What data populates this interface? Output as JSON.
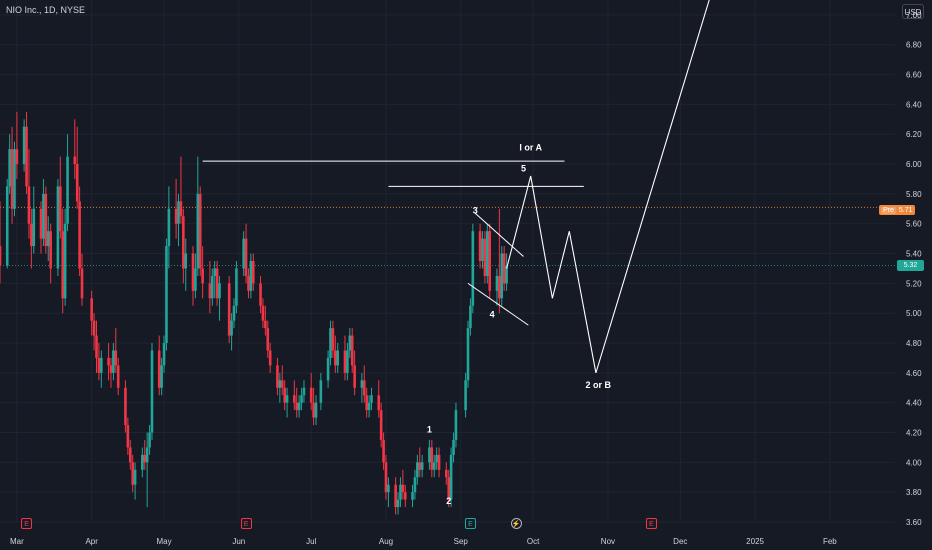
{
  "header": {
    "symbol_title": "NIO Inc., 1D, NYSE"
  },
  "price_scale": {
    "currency_button": "USD",
    "ticks": [
      "7.00",
      "6.80",
      "6.60",
      "6.40",
      "6.20",
      "6.00",
      "5.80",
      "5.60",
      "5.40",
      "5.20",
      "5.00",
      "4.80",
      "4.60",
      "4.40",
      "4.20",
      "4.00",
      "3.80",
      "3.60"
    ],
    "premarket_label": "Pre",
    "premarket_price": "5.71",
    "last_price": "5.32"
  },
  "time_axis": {
    "ticks": [
      "Mar",
      "Apr",
      "May",
      "Jun",
      "Jul",
      "Aug",
      "Sep",
      "Oct",
      "Nov",
      "Dec",
      "2025",
      "Feb"
    ]
  },
  "annotations": {
    "wave_1": "1",
    "wave_2": "2",
    "wave_3": "3",
    "wave_4": "4",
    "wave_5": "5",
    "target_top": "I or A",
    "target_bottom": "2 or B"
  },
  "events": {
    "earnings_glyph": "E",
    "split_glyph": "⚡"
  },
  "colors": {
    "background": "#161a25",
    "up": "#21a69a",
    "down": "#f23645",
    "grid": "#1f2430",
    "text": "#d1d4dc",
    "premarket": "#f0883e",
    "drawing": "#ffffff"
  },
  "chart_data": {
    "type": "candlestick",
    "title": "NIO Inc., 1D, NYSE",
    "currency": "USD",
    "ylim": [
      3.6,
      7.1
    ],
    "x_range": [
      "2024-02-23",
      "2025-02-28"
    ],
    "grid": true,
    "last_price": 5.32,
    "premarket_price": 5.71,
    "candles": [
      [
        "2024-02-23",
        5.45,
        5.75,
        5.2,
        5.32
      ],
      [
        "2024-02-26",
        5.32,
        5.9,
        5.3,
        5.85
      ],
      [
        "2024-02-27",
        5.85,
        6.2,
        5.8,
        6.1
      ],
      [
        "2024-02-28",
        6.1,
        6.25,
        5.6,
        5.7
      ],
      [
        "2024-02-29",
        5.7,
        6.15,
        5.65,
        6.1
      ],
      [
        "2024-03-01",
        6.1,
        6.35,
        5.9,
        6.0
      ],
      [
        "2024-03-04",
        6.0,
        6.3,
        5.95,
        6.25
      ],
      [
        "2024-03-05",
        6.25,
        6.35,
        5.8,
        5.85
      ],
      [
        "2024-03-06",
        5.85,
        6.1,
        5.5,
        5.6
      ],
      [
        "2024-03-07",
        5.6,
        5.7,
        5.3,
        5.45
      ],
      [
        "2024-03-08",
        5.45,
        5.85,
        5.4,
        5.7
      ],
      [
        "2024-03-11",
        5.7,
        5.75,
        5.4,
        5.5
      ],
      [
        "2024-03-12",
        5.5,
        5.9,
        5.45,
        5.8
      ],
      [
        "2024-03-13",
        5.8,
        5.85,
        5.4,
        5.45
      ],
      [
        "2024-03-14",
        5.45,
        5.65,
        5.35,
        5.55
      ],
      [
        "2024-03-15",
        5.55,
        5.6,
        5.2,
        5.3
      ],
      [
        "2024-03-18",
        5.3,
        5.9,
        5.25,
        5.85
      ],
      [
        "2024-03-19",
        5.85,
        6.05,
        5.5,
        5.55
      ],
      [
        "2024-03-20",
        5.55,
        5.7,
        5.0,
        5.1
      ],
      [
        "2024-03-21",
        5.1,
        5.7,
        5.05,
        5.6
      ],
      [
        "2024-03-22",
        5.6,
        6.2,
        5.55,
        6.05
      ],
      [
        "2024-03-25",
        6.05,
        6.3,
        5.9,
        6.0
      ],
      [
        "2024-03-26",
        6.0,
        6.25,
        5.7,
        5.75
      ],
      [
        "2024-03-27",
        5.75,
        5.85,
        5.25,
        5.3
      ],
      [
        "2024-03-28",
        5.3,
        5.4,
        5.05,
        5.1
      ],
      [
        "2024-04-01",
        5.1,
        5.15,
        4.85,
        4.95
      ],
      [
        "2024-04-02",
        4.95,
        5.0,
        4.75,
        4.85
      ],
      [
        "2024-04-03",
        4.85,
        4.95,
        4.6,
        4.7
      ],
      [
        "2024-04-04",
        4.7,
        4.8,
        4.55,
        4.6
      ],
      [
        "2024-04-05",
        4.6,
        4.75,
        4.5,
        4.7
      ],
      [
        "2024-04-08",
        4.7,
        4.8,
        4.55,
        4.65
      ],
      [
        "2024-04-09",
        4.65,
        4.7,
        4.5,
        4.6
      ],
      [
        "2024-04-10",
        4.6,
        4.8,
        4.55,
        4.75
      ],
      [
        "2024-04-11",
        4.75,
        4.9,
        4.6,
        4.65
      ],
      [
        "2024-04-12",
        4.65,
        4.7,
        4.45,
        4.5
      ],
      [
        "2024-04-15",
        4.5,
        4.55,
        4.2,
        4.25
      ],
      [
        "2024-04-16",
        4.25,
        4.3,
        4.05,
        4.1
      ],
      [
        "2024-04-17",
        4.1,
        4.15,
        3.95,
        4.0
      ],
      [
        "2024-04-18",
        4.0,
        4.05,
        3.8,
        3.85
      ],
      [
        "2024-04-19",
        3.85,
        4.0,
        3.75,
        3.95
      ],
      [
        "2024-04-22",
        3.95,
        4.1,
        3.9,
        4.05
      ],
      [
        "2024-04-23",
        4.05,
        4.15,
        3.95,
        4.0
      ],
      [
        "2024-04-24",
        4.0,
        4.2,
        3.7,
        4.1
      ],
      [
        "2024-04-25",
        4.1,
        4.25,
        4.05,
        4.2
      ],
      [
        "2024-04-26",
        4.2,
        4.8,
        4.15,
        4.75
      ],
      [
        "2024-04-29",
        4.75,
        4.85,
        4.45,
        4.5
      ],
      [
        "2024-04-30",
        4.5,
        4.7,
        4.45,
        4.65
      ],
      [
        "2024-05-01",
        4.65,
        4.85,
        4.6,
        4.8
      ],
      [
        "2024-05-02",
        4.8,
        5.5,
        4.75,
        5.45
      ],
      [
        "2024-05-03",
        5.45,
        5.85,
        5.3,
        5.7
      ],
      [
        "2024-05-06",
        5.7,
        5.9,
        5.5,
        5.6
      ],
      [
        "2024-05-07",
        5.6,
        5.8,
        5.45,
        5.75
      ],
      [
        "2024-05-08",
        5.75,
        6.05,
        5.6,
        5.65
      ],
      [
        "2024-05-09",
        5.65,
        5.7,
        5.2,
        5.3
      ],
      [
        "2024-05-10",
        5.3,
        5.5,
        5.15,
        5.4
      ],
      [
        "2024-05-13",
        5.4,
        5.45,
        5.05,
        5.15
      ],
      [
        "2024-05-14",
        5.15,
        5.4,
        5.1,
        5.3
      ],
      [
        "2024-05-15",
        5.3,
        6.05,
        5.25,
        5.8
      ],
      [
        "2024-05-16",
        5.8,
        5.85,
        5.25,
        5.3
      ],
      [
        "2024-05-17",
        5.3,
        5.45,
        5.1,
        5.2
      ],
      [
        "2024-05-20",
        5.2,
        5.35,
        5.0,
        5.1
      ],
      [
        "2024-05-21",
        5.1,
        5.3,
        5.05,
        5.25
      ],
      [
        "2024-05-22",
        5.25,
        5.35,
        5.1,
        5.3
      ],
      [
        "2024-05-23",
        5.3,
        5.35,
        5.05,
        5.1
      ],
      [
        "2024-05-24",
        5.1,
        5.25,
        4.95,
        5.2
      ],
      [
        "2024-05-28",
        5.2,
        5.25,
        4.8,
        4.85
      ],
      [
        "2024-05-29",
        4.85,
        5.0,
        4.75,
        4.95
      ],
      [
        "2024-05-30",
        4.95,
        5.1,
        4.9,
        5.05
      ],
      [
        "2024-05-31",
        5.05,
        5.35,
        5.0,
        5.3
      ],
      [
        "2024-06-03",
        5.3,
        5.55,
        5.25,
        5.5
      ],
      [
        "2024-06-04",
        5.5,
        5.6,
        5.2,
        5.25
      ],
      [
        "2024-06-05",
        5.25,
        5.3,
        5.1,
        5.15
      ],
      [
        "2024-06-06",
        5.15,
        5.4,
        5.1,
        5.35
      ],
      [
        "2024-06-07",
        5.35,
        5.4,
        5.15,
        5.2
      ],
      [
        "2024-06-10",
        5.2,
        5.25,
        5.0,
        5.05
      ],
      [
        "2024-06-11",
        5.05,
        5.1,
        4.9,
        4.95
      ],
      [
        "2024-06-12",
        4.95,
        5.05,
        4.85,
        4.9
      ],
      [
        "2024-06-13",
        4.9,
        4.95,
        4.7,
        4.75
      ],
      [
        "2024-06-14",
        4.75,
        4.8,
        4.6,
        4.65
      ],
      [
        "2024-06-17",
        4.65,
        4.7,
        4.45,
        4.5
      ],
      [
        "2024-06-18",
        4.5,
        4.6,
        4.4,
        4.55
      ],
      [
        "2024-06-19",
        4.55,
        4.65,
        4.45,
        4.5
      ],
      [
        "2024-06-20",
        4.5,
        4.55,
        4.35,
        4.4
      ],
      [
        "2024-06-21",
        4.4,
        4.5,
        4.3,
        4.45
      ],
      [
        "2024-06-24",
        4.45,
        4.55,
        4.35,
        4.4
      ],
      [
        "2024-06-25",
        4.4,
        4.5,
        4.3,
        4.35
      ],
      [
        "2024-06-26",
        4.35,
        4.45,
        4.3,
        4.4
      ],
      [
        "2024-06-27",
        4.4,
        4.5,
        4.35,
        4.45
      ],
      [
        "2024-06-28",
        4.45,
        4.55,
        4.4,
        4.5
      ],
      [
        "2024-07-01",
        4.5,
        4.6,
        4.35,
        4.4
      ],
      [
        "2024-07-02",
        4.4,
        4.5,
        4.25,
        4.3
      ],
      [
        "2024-07-03",
        4.3,
        4.45,
        4.25,
        4.4
      ],
      [
        "2024-07-05",
        4.4,
        4.6,
        4.35,
        4.55
      ],
      [
        "2024-07-08",
        4.55,
        4.75,
        4.5,
        4.7
      ],
      [
        "2024-07-09",
        4.7,
        4.95,
        4.65,
        4.9
      ],
      [
        "2024-07-10",
        4.9,
        4.95,
        4.7,
        4.75
      ],
      [
        "2024-07-11",
        4.75,
        4.85,
        4.6,
        4.65
      ],
      [
        "2024-07-12",
        4.65,
        4.8,
        4.6,
        4.75
      ],
      [
        "2024-07-15",
        4.75,
        4.85,
        4.55,
        4.6
      ],
      [
        "2024-07-16",
        4.6,
        4.8,
        4.55,
        4.75
      ],
      [
        "2024-07-17",
        4.75,
        4.9,
        4.7,
        4.85
      ],
      [
        "2024-07-18",
        4.85,
        4.9,
        4.6,
        4.65
      ],
      [
        "2024-07-19",
        4.65,
        4.75,
        4.45,
        4.5
      ],
      [
        "2024-07-22",
        4.5,
        4.6,
        4.4,
        4.55
      ],
      [
        "2024-07-23",
        4.55,
        4.65,
        4.4,
        4.45
      ],
      [
        "2024-07-24",
        4.45,
        4.5,
        4.3,
        4.35
      ],
      [
        "2024-07-25",
        4.35,
        4.45,
        4.3,
        4.4
      ],
      [
        "2024-07-26",
        4.4,
        4.5,
        4.35,
        4.45
      ],
      [
        "2024-07-29",
        4.45,
        4.55,
        4.3,
        4.35
      ],
      [
        "2024-07-30",
        4.35,
        4.4,
        4.1,
        4.15
      ],
      [
        "2024-07-31",
        4.15,
        4.2,
        3.95,
        4.0
      ],
      [
        "2024-08-01",
        4.0,
        4.05,
        3.75,
        3.8
      ],
      [
        "2024-08-02",
        3.8,
        3.9,
        3.7,
        3.85
      ],
      [
        "2024-08-05",
        3.85,
        3.9,
        3.65,
        3.7
      ],
      [
        "2024-08-06",
        3.7,
        3.8,
        3.65,
        3.75
      ],
      [
        "2024-08-07",
        3.75,
        3.9,
        3.7,
        3.85
      ],
      [
        "2024-08-08",
        3.85,
        3.95,
        3.75,
        3.8
      ],
      [
        "2024-08-09",
        3.8,
        3.85,
        3.7,
        3.75
      ],
      [
        "2024-08-12",
        3.75,
        3.85,
        3.7,
        3.8
      ],
      [
        "2024-08-13",
        3.8,
        3.95,
        3.75,
        3.9
      ],
      [
        "2024-08-14",
        3.9,
        4.05,
        3.85,
        4.0
      ],
      [
        "2024-08-15",
        4.0,
        4.1,
        3.9,
        3.95
      ],
      [
        "2024-08-16",
        3.95,
        4.05,
        3.9,
        4.0
      ],
      [
        "2024-08-19",
        4.0,
        4.15,
        3.95,
        4.1
      ],
      [
        "2024-08-20",
        4.1,
        4.15,
        3.9,
        3.95
      ],
      [
        "2024-08-21",
        3.95,
        4.05,
        3.9,
        4.0
      ],
      [
        "2024-08-22",
        4.0,
        4.1,
        3.95,
        4.05
      ],
      [
        "2024-08-23",
        4.05,
        4.1,
        3.9,
        3.95
      ],
      [
        "2024-08-26",
        3.95,
        4.0,
        3.85,
        3.9
      ],
      [
        "2024-08-27",
        3.9,
        3.95,
        3.7,
        3.75
      ],
      [
        "2024-08-28",
        3.75,
        4.1,
        3.7,
        4.05
      ],
      [
        "2024-08-29",
        4.05,
        4.2,
        4.0,
        4.15
      ],
      [
        "2024-08-30",
        4.15,
        4.4,
        4.1,
        4.35
      ],
      [
        "2024-09-03",
        4.35,
        4.6,
        4.3,
        4.55
      ],
      [
        "2024-09-04",
        4.55,
        4.95,
        4.5,
        4.9
      ],
      [
        "2024-09-05",
        4.9,
        5.1,
        4.85,
        5.05
      ],
      [
        "2024-09-06",
        5.05,
        5.6,
        5.0,
        5.55
      ],
      [
        "2024-09-09",
        5.55,
        5.6,
        5.3,
        5.35
      ],
      [
        "2024-09-10",
        5.35,
        5.55,
        5.3,
        5.5
      ],
      [
        "2024-09-11",
        5.5,
        5.55,
        5.2,
        5.25
      ],
      [
        "2024-09-12",
        5.25,
        5.6,
        5.2,
        5.55
      ],
      [
        "2024-09-13",
        5.55,
        5.6,
        5.1,
        5.15
      ],
      [
        "2024-09-16",
        5.15,
        5.3,
        5.05,
        5.25
      ],
      [
        "2024-09-17",
        5.25,
        5.7,
        5.0,
        5.1
      ],
      [
        "2024-09-18",
        5.1,
        5.45,
        5.05,
        5.4
      ],
      [
        "2024-09-19",
        5.4,
        5.45,
        5.15,
        5.2
      ],
      [
        "2024-09-20",
        5.2,
        5.4,
        5.15,
        5.32
      ]
    ],
    "wave_projection": [
      [
        "2024-09-20",
        5.3
      ],
      [
        "2024-09-30",
        5.92
      ],
      [
        "2024-10-09",
        5.1
      ],
      [
        "2024-10-16",
        5.55
      ],
      [
        "2024-10-27",
        4.6
      ],
      [
        "2024-12-13",
        7.1
      ]
    ],
    "wave_labels": [
      {
        "text": "1",
        "date": "2024-08-19",
        "price": 4.2
      },
      {
        "text": "2",
        "date": "2024-08-27",
        "price": 3.72
      },
      {
        "text": "3",
        "date": "2024-09-07",
        "price": 5.67
      },
      {
        "text": "4",
        "date": "2024-09-14",
        "price": 4.97
      },
      {
        "text": "5",
        "date": "2024-09-27",
        "price": 5.95
      },
      {
        "text": "I or A",
        "date": "2024-09-30",
        "price": 6.09
      },
      {
        "text": "2 or B",
        "date": "2024-10-28",
        "price": 4.5
      }
    ],
    "horizontal_lines": [
      {
        "from": "2024-05-17",
        "to": "2024-10-14",
        "price": 6.02
      },
      {
        "from": "2024-08-02",
        "to": "2024-10-22",
        "price": 5.85
      }
    ],
    "trend_lines": [
      [
        [
          "2024-09-07",
          5.67
        ],
        [
          "2024-09-27",
          5.38
        ]
      ],
      [
        [
          "2024-09-04",
          5.2
        ],
        [
          "2024-09-29",
          4.92
        ]
      ]
    ],
    "earnings_dates": [
      "2024-03-05",
      "2024-06-04",
      "2024-09-05",
      "2024-11-19"
    ],
    "split_dates": [
      "2024-09-24"
    ]
  }
}
